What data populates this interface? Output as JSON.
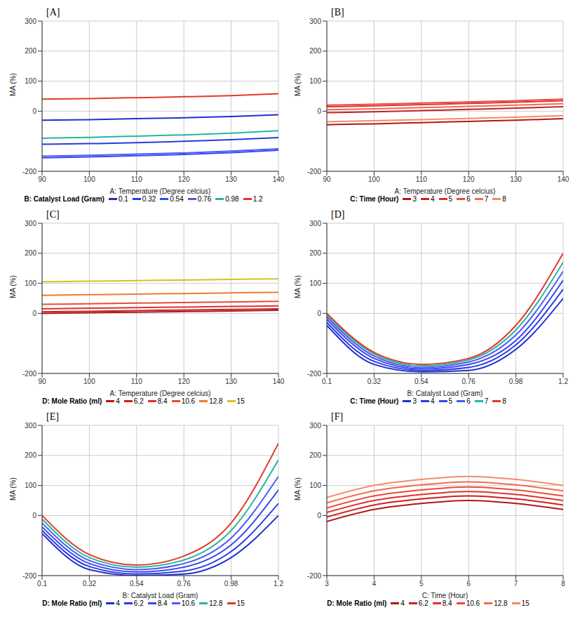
{
  "chart_data": [
    {
      "type": "line",
      "title": "[A]",
      "xlabel": "A: Temperature (Degree celcius)",
      "ylabel": "MA (%)",
      "series_label": "B: Catalyst Load (Gram)",
      "x": [
        90,
        100,
        110,
        120,
        130,
        140
      ],
      "xlim": [
        90,
        140
      ],
      "xticks": [
        90,
        100,
        110,
        120,
        130,
        140
      ],
      "ylim": [
        -200,
        300
      ],
      "yticks": [
        -200,
        0,
        100,
        200,
        300
      ],
      "grid": true,
      "series": [
        {
          "name": "0.1",
          "color": "#1f2fd0",
          "values": [
            -30,
            -28,
            -25,
            -22,
            -18,
            -12
          ]
        },
        {
          "name": "0.32",
          "color": "#2a3ae0",
          "values": [
            -110,
            -108,
            -105,
            -100,
            -95,
            -88
          ]
        },
        {
          "name": "0.54",
          "color": "#3848ee",
          "values": [
            -155,
            -152,
            -148,
            -144,
            -138,
            -130
          ]
        },
        {
          "name": "0.76",
          "color": "#4a5af5",
          "values": [
            -150,
            -147,
            -143,
            -139,
            -133,
            -125
          ]
        },
        {
          "name": "0.98",
          "color": "#28b4a0",
          "values": [
            -90,
            -87,
            -83,
            -79,
            -73,
            -65
          ]
        },
        {
          "name": "1.2",
          "color": "#e03a2a",
          "values": [
            40,
            42,
            45,
            48,
            52,
            58
          ]
        }
      ]
    },
    {
      "type": "line",
      "title": "[B]",
      "xlabel": "A: Temperature (Degree celcius)",
      "ylabel": "MA (%)",
      "series_label": "C: Time (Hour)",
      "x": [
        90,
        100,
        110,
        120,
        130,
        140
      ],
      "xlim": [
        90,
        140
      ],
      "xticks": [
        90,
        100,
        110,
        120,
        130,
        140
      ],
      "ylim": [
        -200,
        300
      ],
      "yticks": [
        -200,
        0,
        100,
        200,
        300
      ],
      "grid": true,
      "series": [
        {
          "name": "3",
          "color": "#b01818",
          "values": [
            -45,
            -42,
            -38,
            -34,
            -30,
            -25
          ]
        },
        {
          "name": "4",
          "color": "#c82222",
          "values": [
            -5,
            -2,
            2,
            6,
            10,
            15
          ]
        },
        {
          "name": "5",
          "color": "#e03030",
          "values": [
            15,
            18,
            22,
            26,
            30,
            35
          ]
        },
        {
          "name": "6",
          "color": "#ec4a3a",
          "values": [
            20,
            23,
            27,
            31,
            35,
            40
          ]
        },
        {
          "name": "7",
          "color": "#f26a50",
          "values": [
            5,
            8,
            12,
            16,
            20,
            25
          ]
        },
        {
          "name": "8",
          "color": "#f58a6a",
          "values": [
            -35,
            -32,
            -28,
            -24,
            -20,
            -15
          ]
        }
      ]
    },
    {
      "type": "line",
      "title": "[C]",
      "xlabel": "A: Temperature (Degree celcius)",
      "ylabel": "MA (%)",
      "series_label": "D: Mole Ratio (ml)",
      "x": [
        90,
        100,
        110,
        120,
        130,
        140
      ],
      "xlim": [
        90,
        140
      ],
      "xticks": [
        90,
        100,
        110,
        120,
        130,
        140
      ],
      "ylim": [
        -200,
        300
      ],
      "yticks": [
        -200,
        0,
        100,
        200,
        300
      ],
      "grid": true,
      "series": [
        {
          "name": "4",
          "color": "#b01818",
          "values": [
            0,
            2,
            4,
            6,
            8,
            10
          ]
        },
        {
          "name": "6.2",
          "color": "#c82222",
          "values": [
            5,
            7,
            9,
            11,
            13,
            15
          ]
        },
        {
          "name": "8.4",
          "color": "#e03030",
          "values": [
            15,
            17,
            19,
            21,
            23,
            25
          ]
        },
        {
          "name": "10.6",
          "color": "#ec4a3a",
          "values": [
            30,
            32,
            34,
            36,
            38,
            40
          ]
        },
        {
          "name": "12.8",
          "color": "#f07a30",
          "values": [
            60,
            62,
            64,
            66,
            68,
            70
          ]
        },
        {
          "name": "15",
          "color": "#d8c020",
          "values": [
            105,
            107,
            109,
            111,
            113,
            115
          ]
        }
      ]
    },
    {
      "type": "line",
      "title": "[D]",
      "xlabel": "B: Catalyst Load (Gram)",
      "ylabel": "MA (%)",
      "series_label": "C: Time (Hour)",
      "x": [
        0.1,
        0.32,
        0.54,
        0.76,
        0.98,
        1.2
      ],
      "xlim": [
        0.1,
        1.2
      ],
      "xticks": [
        0.1,
        0.32,
        0.54,
        0.76,
        0.98,
        1.2
      ],
      "ylim": [
        -200,
        300
      ],
      "yticks": [
        -200,
        0,
        100,
        200,
        300
      ],
      "grid": true,
      "series": [
        {
          "name": "3",
          "color": "#1f2fd0",
          "values": [
            -40,
            -170,
            -195,
            -190,
            -120,
            50
          ]
        },
        {
          "name": "4",
          "color": "#2a3ae0",
          "values": [
            -30,
            -160,
            -190,
            -180,
            -105,
            80
          ]
        },
        {
          "name": "5",
          "color": "#3848ee",
          "values": [
            -20,
            -150,
            -185,
            -170,
            -90,
            110
          ]
        },
        {
          "name": "6",
          "color": "#4a5af5",
          "values": [
            -12,
            -142,
            -180,
            -162,
            -72,
            140
          ]
        },
        {
          "name": "7",
          "color": "#28b4a0",
          "values": [
            -5,
            -135,
            -175,
            -155,
            -55,
            170
          ]
        },
        {
          "name": "8",
          "color": "#e03a2a",
          "values": [
            0,
            -130,
            -170,
            -150,
            -40,
            200
          ]
        }
      ]
    },
    {
      "type": "line",
      "title": "[E]",
      "xlabel": "B: Catalyst Load (Gram)",
      "ylabel": "MA (%)",
      "series_label": "D: Mole Ratio (ml)",
      "x": [
        0.1,
        0.32,
        0.54,
        0.76,
        0.98,
        1.2
      ],
      "xlim": [
        0.1,
        1.2
      ],
      "xticks": [
        0.1,
        0.32,
        0.54,
        0.76,
        0.98,
        1.2
      ],
      "ylim": [
        -200,
        300
      ],
      "yticks": [
        -200,
        0,
        100,
        200,
        300
      ],
      "grid": true,
      "series": [
        {
          "name": "4",
          "color": "#1f2fd0",
          "values": [
            -60,
            -180,
            -200,
            -195,
            -140,
            0
          ]
        },
        {
          "name": "6.2",
          "color": "#2a3ae0",
          "values": [
            -50,
            -170,
            -195,
            -185,
            -120,
            40
          ]
        },
        {
          "name": "8.4",
          "color": "#3848ee",
          "values": [
            -38,
            -160,
            -188,
            -172,
            -98,
            85
          ]
        },
        {
          "name": "10.6",
          "color": "#4a5af5",
          "values": [
            -25,
            -150,
            -180,
            -160,
            -75,
            130
          ]
        },
        {
          "name": "12.8",
          "color": "#28b4a0",
          "values": [
            -12,
            -140,
            -172,
            -148,
            -50,
            185
          ]
        },
        {
          "name": "15",
          "color": "#e03a2a",
          "values": [
            0,
            -130,
            -165,
            -135,
            -25,
            240
          ]
        }
      ]
    },
    {
      "type": "line",
      "title": "[F]",
      "xlabel": "C: Time (Hour)",
      "ylabel": "MA (%)",
      "series_label": "D: Mole Ratio (ml)",
      "x": [
        3,
        4,
        5,
        6,
        7,
        8
      ],
      "xlim": [
        3,
        8
      ],
      "xticks": [
        3,
        4,
        5,
        6,
        7,
        8
      ],
      "ylim": [
        -200,
        300
      ],
      "yticks": [
        -200,
        0,
        100,
        200,
        300
      ],
      "grid": true,
      "series": [
        {
          "name": "4",
          "color": "#b01818",
          "values": [
            -20,
            20,
            40,
            50,
            40,
            20
          ]
        },
        {
          "name": "6.2",
          "color": "#c82222",
          "values": [
            -5,
            35,
            55,
            65,
            55,
            35
          ]
        },
        {
          "name": "8.4",
          "color": "#e03030",
          "values": [
            10,
            50,
            70,
            80,
            70,
            50
          ]
        },
        {
          "name": "10.6",
          "color": "#ec4a3a",
          "values": [
            25,
            65,
            85,
            95,
            85,
            65
          ]
        },
        {
          "name": "12.8",
          "color": "#f26a50",
          "values": [
            42,
            82,
            102,
            112,
            102,
            82
          ]
        },
        {
          "name": "15",
          "color": "#f58a6a",
          "values": [
            60,
            100,
            120,
            130,
            120,
            100
          ]
        }
      ]
    }
  ]
}
